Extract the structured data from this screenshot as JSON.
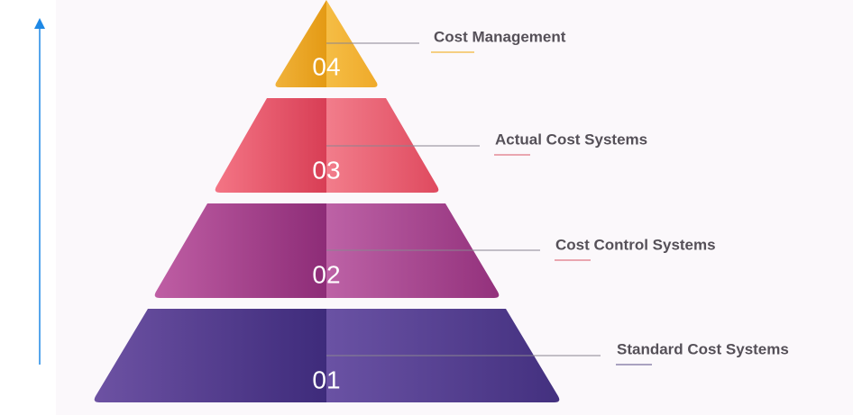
{
  "levels": [
    {
      "number": "01",
      "label": "Standard Cost Systems"
    },
    {
      "number": "02",
      "label": "Cost Control Systems"
    },
    {
      "number": "03",
      "label": "Actual Cost Systems"
    },
    {
      "number": "04",
      "label": "Cost Management"
    }
  ]
}
